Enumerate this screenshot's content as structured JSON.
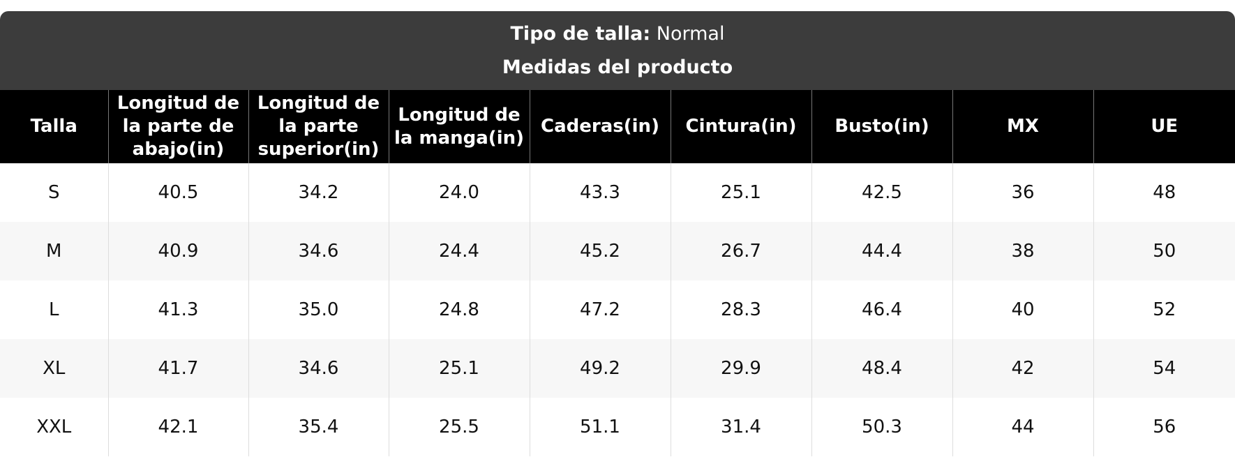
{
  "header": {
    "title_label": "Tipo de talla:",
    "title_value": "Normal",
    "subtitle": "Medidas del producto"
  },
  "table": {
    "columns": [
      "Talla",
      "Longitud de la parte de abajo(in)",
      "Longitud de la parte superior(in)",
      "Longitud de la manga(in)",
      "Caderas(in)",
      "Cintura(in)",
      "Busto(in)",
      "MX",
      "UE"
    ],
    "rows": [
      [
        "S",
        "40.5",
        "34.2",
        "24.0",
        "43.3",
        "25.1",
        "42.5",
        "36",
        "48"
      ],
      [
        "M",
        "40.9",
        "34.6",
        "24.4",
        "45.2",
        "26.7",
        "44.4",
        "38",
        "50"
      ],
      [
        "L",
        "41.3",
        "35.0",
        "24.8",
        "47.2",
        "28.3",
        "46.4",
        "40",
        "52"
      ],
      [
        "XL",
        "41.7",
        "34.6",
        "25.1",
        "49.2",
        "29.9",
        "48.4",
        "42",
        "54"
      ],
      [
        "XXL",
        "42.1",
        "35.4",
        "25.5",
        "51.1",
        "31.4",
        "50.3",
        "44",
        "56"
      ]
    ]
  }
}
